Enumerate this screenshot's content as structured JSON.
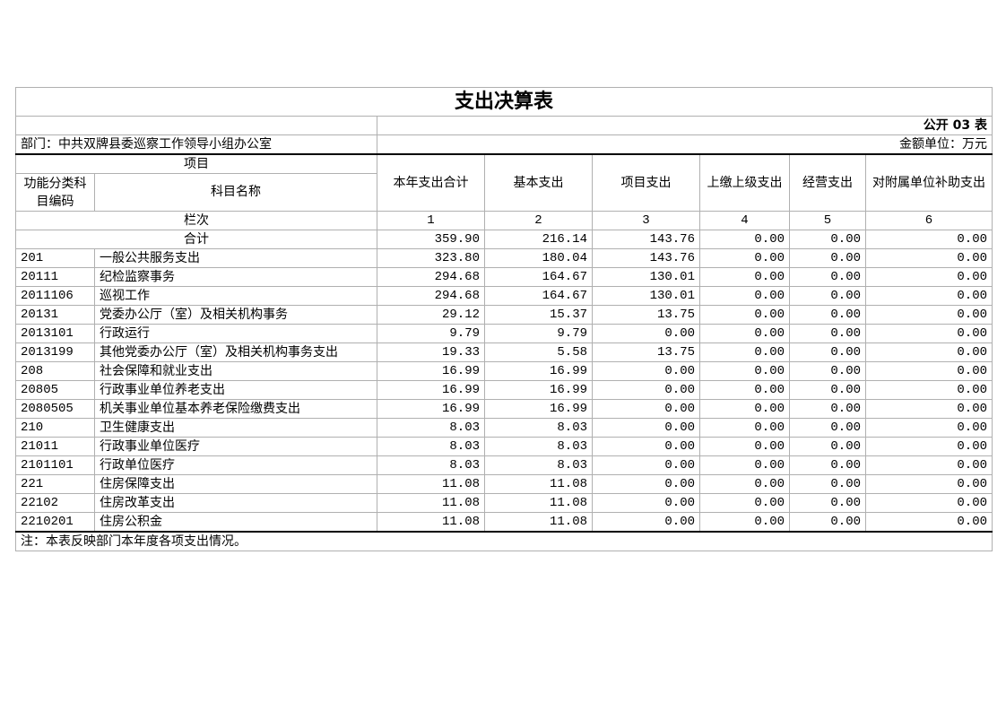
{
  "title": "支出决算表",
  "table_no": "公开 03 表",
  "department": "部门：中共双牌县委巡察工作领导小组办公室",
  "unit": "金额单位：万元",
  "headers": {
    "item": "项目",
    "code": "功能分类科目编码",
    "name": "科目名称",
    "cols": [
      "本年支出合计",
      "基本支出",
      "项目支出",
      "上缴上级支出",
      "经营支出",
      "对附属单位补助支出"
    ],
    "col_index_label": "栏次",
    "col_index": [
      "1",
      "2",
      "3",
      "4",
      "5",
      "6"
    ]
  },
  "total": {
    "label": "合计",
    "values": [
      "359.90",
      "216.14",
      "143.76",
      "0.00",
      "0.00",
      "0.00"
    ]
  },
  "rows": [
    {
      "code": "201",
      "name": "一般公共服务支出",
      "values": [
        "323.80",
        "180.04",
        "143.76",
        "0.00",
        "0.00",
        "0.00"
      ]
    },
    {
      "code": "20111",
      "name": "纪检监察事务",
      "values": [
        "294.68",
        "164.67",
        "130.01",
        "0.00",
        "0.00",
        "0.00"
      ]
    },
    {
      "code": "2011106",
      "name": "巡视工作",
      "values": [
        "294.68",
        "164.67",
        "130.01",
        "0.00",
        "0.00",
        "0.00"
      ]
    },
    {
      "code": "20131",
      "name": "党委办公厅（室）及相关机构事务",
      "values": [
        "29.12",
        "15.37",
        "13.75",
        "0.00",
        "0.00",
        "0.00"
      ]
    },
    {
      "code": "2013101",
      "name": "行政运行",
      "values": [
        "9.79",
        "9.79",
        "0.00",
        "0.00",
        "0.00",
        "0.00"
      ]
    },
    {
      "code": "2013199",
      "name": "其他党委办公厅（室）及相关机构事务支出",
      "values": [
        "19.33",
        "5.58",
        "13.75",
        "0.00",
        "0.00",
        "0.00"
      ]
    },
    {
      "code": "208",
      "name": "社会保障和就业支出",
      "values": [
        "16.99",
        "16.99",
        "0.00",
        "0.00",
        "0.00",
        "0.00"
      ]
    },
    {
      "code": "20805",
      "name": "行政事业单位养老支出",
      "values": [
        "16.99",
        "16.99",
        "0.00",
        "0.00",
        "0.00",
        "0.00"
      ]
    },
    {
      "code": "2080505",
      "name": "机关事业单位基本养老保险缴费支出",
      "values": [
        "16.99",
        "16.99",
        "0.00",
        "0.00",
        "0.00",
        "0.00"
      ]
    },
    {
      "code": "210",
      "name": "卫生健康支出",
      "values": [
        "8.03",
        "8.03",
        "0.00",
        "0.00",
        "0.00",
        "0.00"
      ]
    },
    {
      "code": "21011",
      "name": "行政事业单位医疗",
      "values": [
        "8.03",
        "8.03",
        "0.00",
        "0.00",
        "0.00",
        "0.00"
      ]
    },
    {
      "code": "2101101",
      "name": "行政单位医疗",
      "values": [
        "8.03",
        "8.03",
        "0.00",
        "0.00",
        "0.00",
        "0.00"
      ]
    },
    {
      "code": "221",
      "name": "住房保障支出",
      "values": [
        "11.08",
        "11.08",
        "0.00",
        "0.00",
        "0.00",
        "0.00"
      ]
    },
    {
      "code": "22102",
      "name": "住房改革支出",
      "values": [
        "11.08",
        "11.08",
        "0.00",
        "0.00",
        "0.00",
        "0.00"
      ]
    },
    {
      "code": "2210201",
      "name": "住房公积金",
      "values": [
        "11.08",
        "11.08",
        "0.00",
        "0.00",
        "0.00",
        "0.00"
      ]
    }
  ],
  "note": "注：本表反映部门本年度各项支出情况。"
}
